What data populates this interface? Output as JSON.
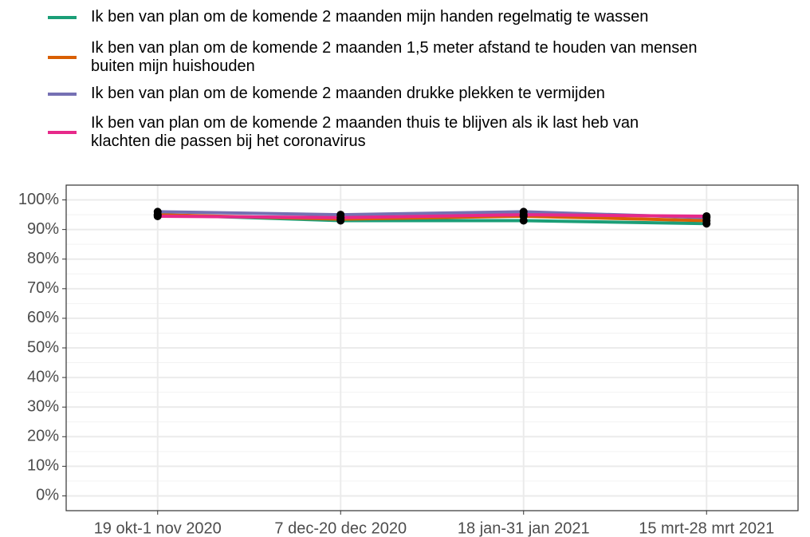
{
  "chart_data": {
    "type": "line",
    "categories": [
      "19 okt-1 nov 2020",
      "7 dec-20 dec 2020",
      "18 jan-31 jan 2021",
      "15 mrt-28 mrt 2021"
    ],
    "series": [
      {
        "name": "Ik ben van plan om de komende 2 maanden mijn handen regelmatig te wassen",
        "color": "#1b9e77",
        "values": [
          95,
          93,
          93,
          92
        ]
      },
      {
        "name": "Ik ben van plan om de komende 2 maanden 1,5 meter afstand te houden van mensen\nbuiten mijn huishouden",
        "color": "#d95f02",
        "values": [
          95,
          93.5,
          94.5,
          93
        ]
      },
      {
        "name": "Ik ben van plan om de komende 2 maanden drukke plekken te vermijden",
        "color": "#7570b3",
        "values": [
          96,
          95,
          96,
          94
        ]
      },
      {
        "name": "Ik ben van plan om de komende 2 maanden thuis te blijven als ik last heb van\nklachten die passen bij het coronavirus",
        "color": "#e7298a",
        "values": [
          94.5,
          94,
          95,
          94.5
        ]
      }
    ],
    "point_color": "#000000",
    "ylim": [
      -5,
      105
    ],
    "yticks": [
      {
        "value": 0,
        "label": "0%"
      },
      {
        "value": 10,
        "label": "10%"
      },
      {
        "value": 20,
        "label": "20%"
      },
      {
        "value": 30,
        "label": "30%"
      },
      {
        "value": 40,
        "label": "40%"
      },
      {
        "value": 50,
        "label": "50%"
      },
      {
        "value": 60,
        "label": "60%"
      },
      {
        "value": 70,
        "label": "70%"
      },
      {
        "value": 80,
        "label": "80%"
      },
      {
        "value": 90,
        "label": "90%"
      },
      {
        "value": 100,
        "label": "100%"
      }
    ],
    "yminor": [
      5,
      15,
      25,
      35,
      45,
      55,
      65,
      75,
      85,
      95
    ],
    "grid": true,
    "legend": "top"
  }
}
